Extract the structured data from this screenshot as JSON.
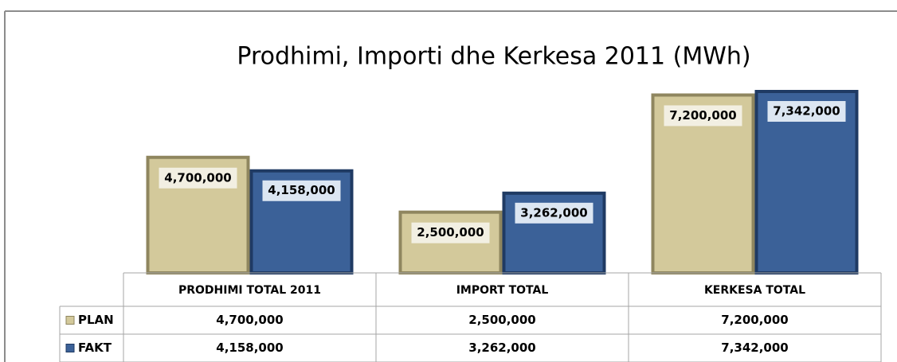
{
  "chart_data": {
    "type": "bar",
    "title": "Prodhimi, Importi dhe Kerkesa 2011 (MWh)",
    "categories": [
      "PRODHIMI TOTAL 2011",
      "IMPORT TOTAL",
      "KERKESA TOTAL"
    ],
    "series": [
      {
        "name": "PLAN",
        "color": "#d3c99b",
        "values": [
          4700000,
          2500000,
          7200000
        ],
        "value_labels": [
          "4,700,000",
          "2,500,000",
          "7,200,000"
        ]
      },
      {
        "name": "FAKT",
        "color": "#3b6198",
        "values": [
          4158000,
          3262000,
          7342000
        ],
        "value_labels": [
          "4,158,000",
          "3,262,000",
          "7,342,000"
        ]
      }
    ]
  }
}
